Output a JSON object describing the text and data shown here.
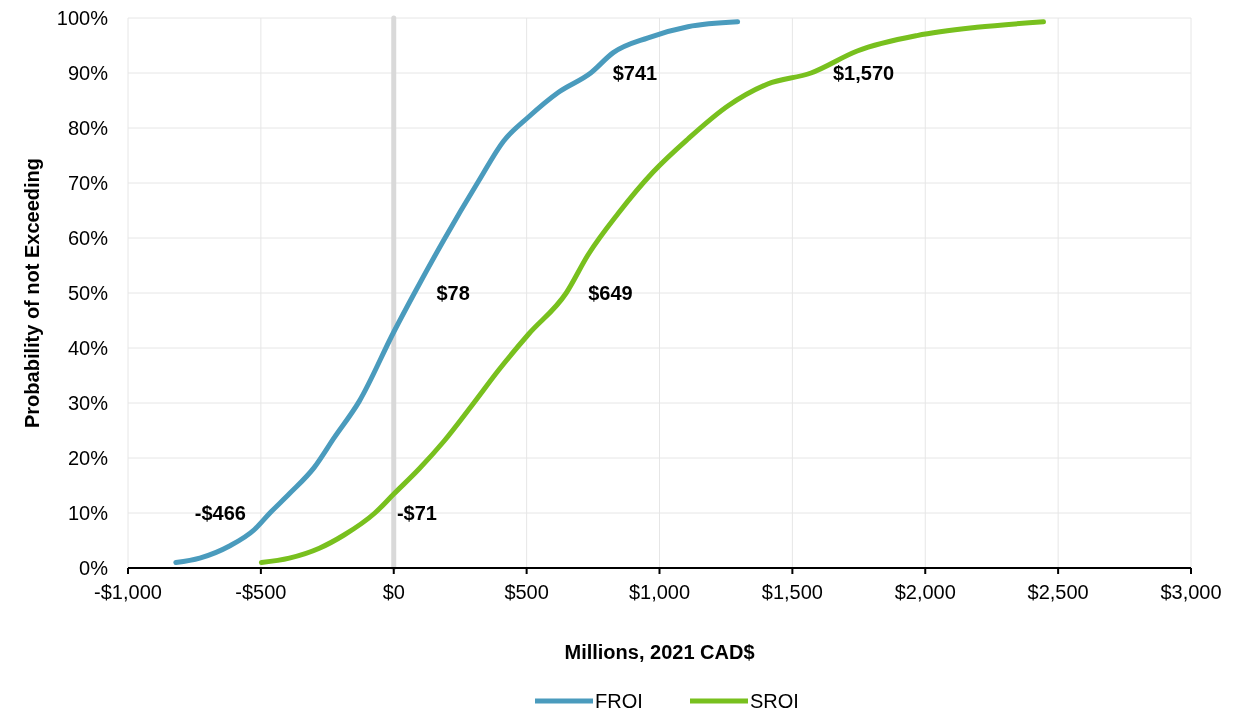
{
  "chart_data": {
    "type": "line",
    "xlabel": "Millions, 2021 CAD$",
    "ylabel": "Probability of not Exceeding",
    "xlim": [
      -1000,
      3000
    ],
    "ylim": [
      0,
      100
    ],
    "xticks": [
      {
        "value": -1000,
        "label": "-$1,000"
      },
      {
        "value": -500,
        "label": "-$500"
      },
      {
        "value": 0,
        "label": "$0"
      },
      {
        "value": 500,
        "label": "$500"
      },
      {
        "value": 1000,
        "label": "$1,000"
      },
      {
        "value": 1500,
        "label": "$1,500"
      },
      {
        "value": 2000,
        "label": "$2,000"
      },
      {
        "value": 2500,
        "label": "$2,500"
      },
      {
        "value": 3000,
        "label": "$3,000"
      }
    ],
    "yticks": [
      {
        "value": 0,
        "label": "0%"
      },
      {
        "value": 10,
        "label": "10%"
      },
      {
        "value": 20,
        "label": "20%"
      },
      {
        "value": 30,
        "label": "30%"
      },
      {
        "value": 40,
        "label": "40%"
      },
      {
        "value": 50,
        "label": "50%"
      },
      {
        "value": 60,
        "label": "60%"
      },
      {
        "value": 70,
        "label": "70%"
      },
      {
        "value": 80,
        "label": "80%"
      },
      {
        "value": 90,
        "label": "90%"
      },
      {
        "value": 100,
        "label": "100%"
      }
    ],
    "grid": true,
    "legend": "bottom",
    "marker": "none",
    "line_style": "solid",
    "series": [
      {
        "name": "FROI",
        "color": "#4a9bbd",
        "x": [
          -820,
          -730,
          -618,
          -524,
          -466,
          -393,
          -299,
          -224,
          -130,
          1,
          78,
          188,
          320,
          413,
          507,
          620,
          741,
          826,
          957,
          1107,
          1294
        ],
        "values": [
          1,
          1.8,
          4,
          7,
          10,
          13.5,
          18.3,
          23.7,
          30.3,
          43,
          50,
          59.6,
          70.4,
          77.6,
          82,
          86.5,
          90,
          93.7,
          96.4,
          98.4,
          99.3
        ]
      },
      {
        "name": "SROI",
        "color": "#78c01e",
        "x": [
          -498,
          -393,
          -280,
          -187,
          -71,
          1,
          95,
          188,
          301,
          395,
          507,
          649,
          732,
          845,
          976,
          1107,
          1257,
          1407,
          1570,
          1744,
          1969,
          2194,
          2445
        ],
        "values": [
          1,
          1.8,
          3.6,
          6,
          10,
          13.5,
          18,
          23,
          30,
          36,
          42.5,
          50,
          57,
          64.5,
          72,
          78,
          84,
          88,
          90,
          94,
          96.8,
          98.3,
          99.3
        ]
      }
    ],
    "ref_lines": [
      {
        "axis": "x",
        "value": 0,
        "color": "#d9d9d9"
      }
    ],
    "annotations": [
      {
        "text": "-$466",
        "x": -466,
        "y": 10
      },
      {
        "text": "$78",
        "x": 78,
        "y": 50
      },
      {
        "text": "$741",
        "x": 741,
        "y": 90
      },
      {
        "text": "-$71",
        "x": -71,
        "y": 10
      },
      {
        "text": "$649",
        "x": 649,
        "y": 50
      },
      {
        "text": "$1,570",
        "x": 1570,
        "y": 90
      }
    ]
  }
}
